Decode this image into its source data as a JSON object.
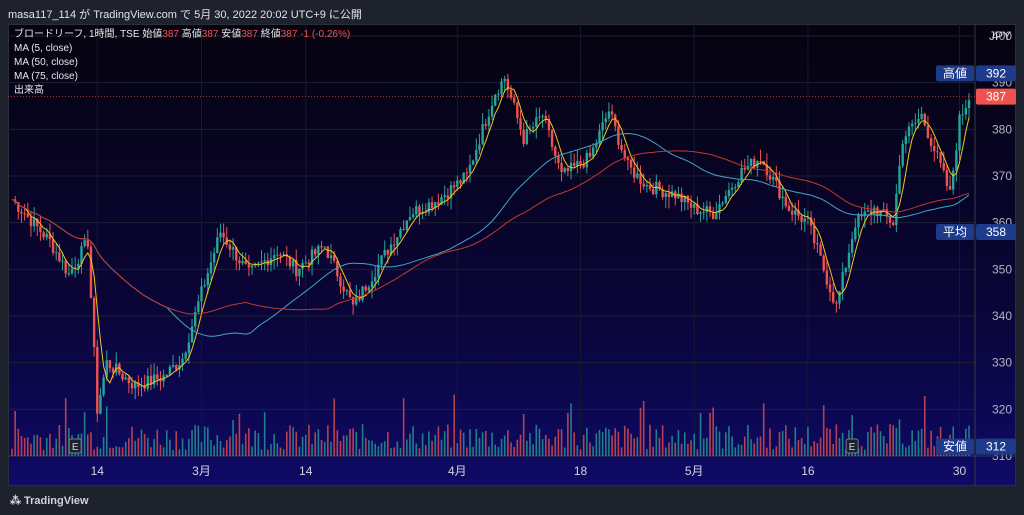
{
  "header": {
    "publish": "masa117_114 が TradingView.com で 5月 30, 2022 20:02 UTC+9 に公開"
  },
  "legend": {
    "symbol": "ブロードリーフ, 1時間, TSE",
    "open_label": "始値",
    "open": "387",
    "high_label": "高値",
    "high": "387",
    "low_label": "安値",
    "low": "387",
    "close_label": "終値",
    "close": "387",
    "change": "-1 (-0.26%)",
    "ma5": "MA (5, close)",
    "ma50": "MA (50, close)",
    "ma75": "MA (75, close)",
    "volume": "出来高"
  },
  "footer": {
    "logo": "TradingView"
  },
  "colors": {
    "up": "#26a69a",
    "down": "#ef5350",
    "ma5": "#f5c518",
    "ma50": "#3fa7c8",
    "ma75": "#c0392b",
    "tag": "#1e3a8a",
    "last": "#ef5350"
  },
  "chart_data": {
    "type": "candlestick",
    "currency": "JPY",
    "ylim": [
      310,
      400
    ],
    "y_ticks": [
      "310",
      "320",
      "330",
      "340",
      "350",
      "360",
      "370",
      "380",
      "390",
      "400"
    ],
    "x_ticks": [
      "14",
      "3月",
      "14",
      "4月",
      "18",
      "5月",
      "16",
      "30"
    ],
    "price_tags": [
      {
        "label": "高値",
        "value": "392"
      },
      {
        "label": "",
        "value": "387"
      },
      {
        "label": "平均",
        "value": "358"
      },
      {
        "label": "安値",
        "value": "312"
      }
    ],
    "event_markers": [
      "E",
      "E"
    ],
    "close_path": [
      {
        "t": 0,
        "v": 365
      },
      {
        "t": 4,
        "v": 356
      },
      {
        "t": 6,
        "v": 349
      },
      {
        "t": 8,
        "v": 356
      },
      {
        "t": 9,
        "v": 320
      },
      {
        "t": 10,
        "v": 330
      },
      {
        "t": 13,
        "v": 325
      },
      {
        "t": 16,
        "v": 327
      },
      {
        "t": 18,
        "v": 331
      },
      {
        "t": 20,
        "v": 345
      },
      {
        "t": 22,
        "v": 358
      },
      {
        "t": 25,
        "v": 349
      },
      {
        "t": 28,
        "v": 354
      },
      {
        "t": 30,
        "v": 350
      },
      {
        "t": 33,
        "v": 355
      },
      {
        "t": 36,
        "v": 342
      },
      {
        "t": 39,
        "v": 352
      },
      {
        "t": 42,
        "v": 362
      },
      {
        "t": 45,
        "v": 365
      },
      {
        "t": 48,
        "v": 370
      },
      {
        "t": 51,
        "v": 388
      },
      {
        "t": 52,
        "v": 391
      },
      {
        "t": 54,
        "v": 378
      },
      {
        "t": 56,
        "v": 383
      },
      {
        "t": 58,
        "v": 370
      },
      {
        "t": 61,
        "v": 374
      },
      {
        "t": 63,
        "v": 384
      },
      {
        "t": 65,
        "v": 372
      },
      {
        "t": 67,
        "v": 368
      },
      {
        "t": 70,
        "v": 366
      },
      {
        "t": 72,
        "v": 363
      },
      {
        "t": 74,
        "v": 362
      },
      {
        "t": 77,
        "v": 371
      },
      {
        "t": 79,
        "v": 374
      },
      {
        "t": 82,
        "v": 363
      },
      {
        "t": 84,
        "v": 360
      },
      {
        "t": 86,
        "v": 348
      },
      {
        "t": 87,
        "v": 342
      },
      {
        "t": 89,
        "v": 360
      },
      {
        "t": 91,
        "v": 363
      },
      {
        "t": 93,
        "v": 360
      },
      {
        "t": 94,
        "v": 378
      },
      {
        "t": 96,
        "v": 383
      },
      {
        "t": 98,
        "v": 372
      },
      {
        "t": 99,
        "v": 366
      },
      {
        "t": 100,
        "v": 382
      },
      {
        "t": 101,
        "v": 387
      }
    ]
  }
}
